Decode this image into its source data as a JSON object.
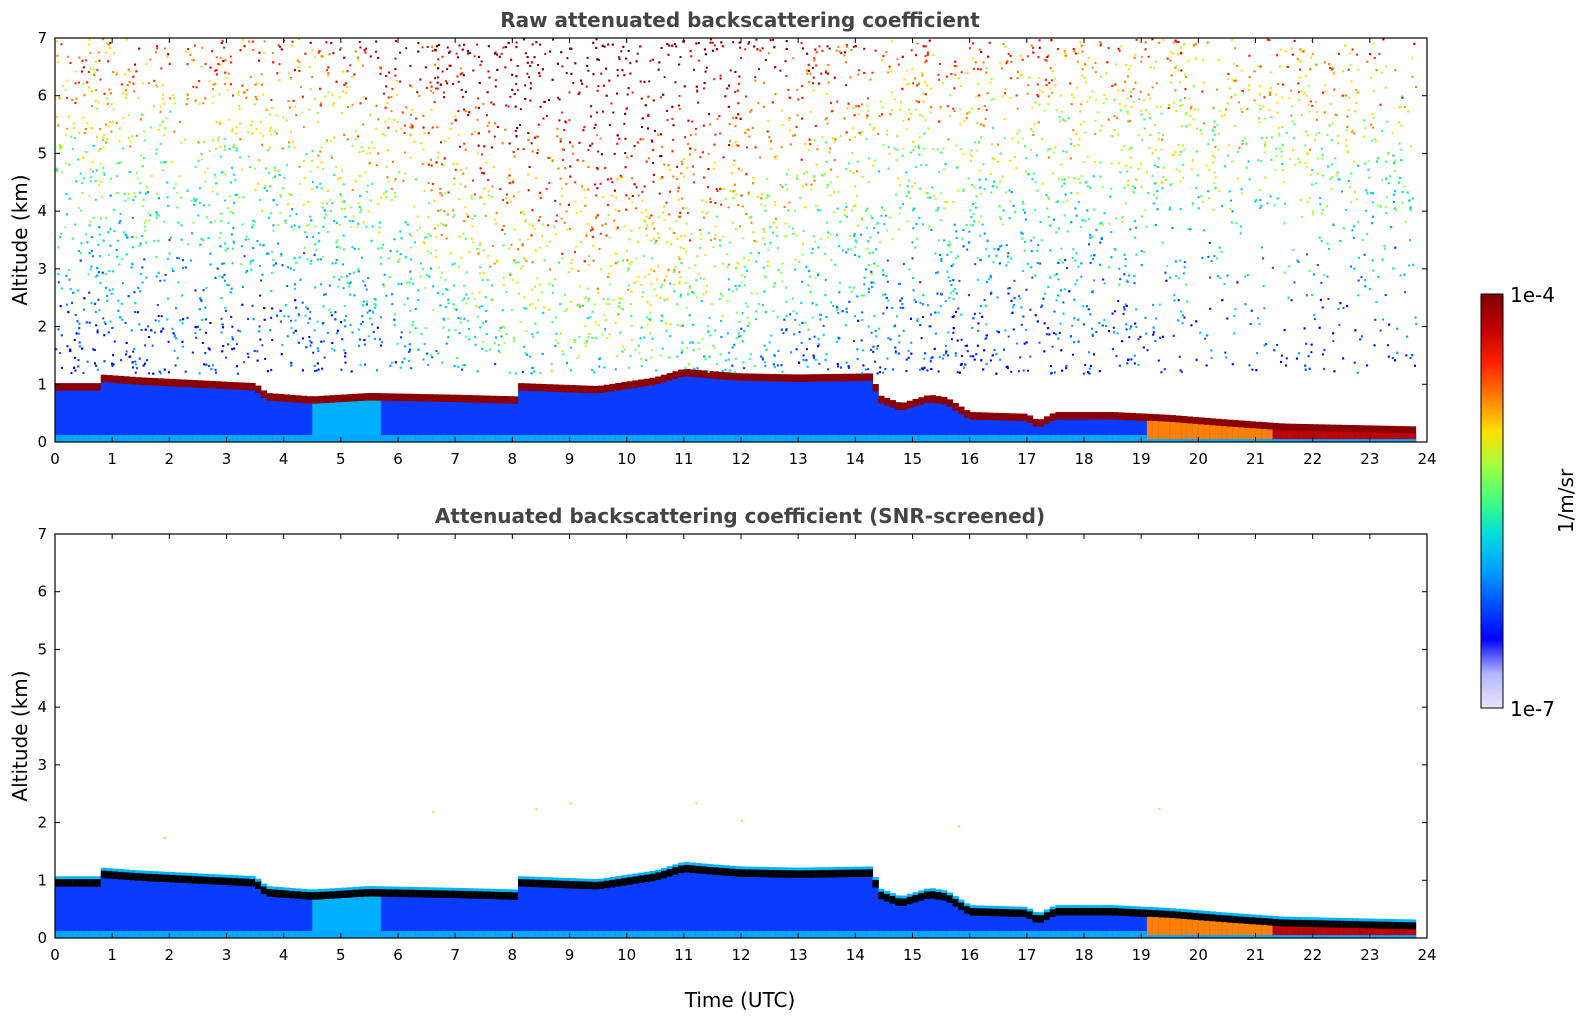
{
  "chart_data": [
    {
      "type": "heatmap",
      "title": "Raw attenuated backscattering coefficient",
      "xlabel": "",
      "ylabel": "Altitude (km)",
      "xlim": [
        0,
        24
      ],
      "ylim": [
        0,
        7
      ],
      "xticks": [
        "0",
        "1",
        "2",
        "3",
        "4",
        "5",
        "6",
        "7",
        "8",
        "9",
        "10",
        "11",
        "12",
        "13",
        "14",
        "15",
        "16",
        "17",
        "18",
        "19",
        "20",
        "21",
        "22",
        "23",
        "24"
      ],
      "yticks": [
        "0",
        "1",
        "2",
        "3",
        "4",
        "5",
        "6",
        "7"
      ],
      "screened": false,
      "layer_height_km": [
        [
          0,
          0.95
        ],
        [
          0.75,
          0.95
        ],
        [
          0.8,
          1.1
        ],
        [
          1.5,
          1.05
        ],
        [
          2.5,
          1.0
        ],
        [
          3.5,
          0.95
        ],
        [
          3.7,
          0.78
        ],
        [
          4.5,
          0.72
        ],
        [
          5.5,
          0.78
        ],
        [
          7.0,
          0.75
        ],
        [
          8.1,
          0.72
        ],
        [
          8.15,
          0.95
        ],
        [
          9.5,
          0.9
        ],
        [
          10.5,
          1.05
        ],
        [
          11.0,
          1.2
        ],
        [
          11.6,
          1.15
        ],
        [
          12.0,
          1.12
        ],
        [
          13.0,
          1.1
        ],
        [
          14.3,
          1.12
        ],
        [
          14.4,
          0.75
        ],
        [
          14.8,
          0.6
        ],
        [
          15.3,
          0.75
        ],
        [
          15.6,
          0.7
        ],
        [
          16.0,
          0.45
        ],
        [
          17.0,
          0.42
        ],
        [
          17.2,
          0.3
        ],
        [
          17.5,
          0.45
        ],
        [
          18.5,
          0.45
        ],
        [
          19.5,
          0.4
        ],
        [
          20.5,
          0.32
        ],
        [
          21.5,
          0.25
        ],
        [
          23.8,
          0.2
        ]
      ]
    },
    {
      "type": "heatmap",
      "title": "Attenuated backscattering coefficient (SNR-screened)",
      "xlabel": "Time (UTC)",
      "ylabel": "Altitude (km)",
      "xlim": [
        0,
        24
      ],
      "ylim": [
        0,
        7
      ],
      "xticks": [
        "0",
        "1",
        "2",
        "3",
        "4",
        "5",
        "6",
        "7",
        "8",
        "9",
        "10",
        "11",
        "12",
        "13",
        "14",
        "15",
        "16",
        "17",
        "18",
        "19",
        "20",
        "21",
        "22",
        "23",
        "24"
      ],
      "yticks": [
        "0",
        "1",
        "2",
        "3",
        "4",
        "5",
        "6",
        "7"
      ],
      "screened": true,
      "layer_height_km": [
        [
          0,
          0.95
        ],
        [
          0.75,
          0.95
        ],
        [
          0.8,
          1.1
        ],
        [
          1.5,
          1.05
        ],
        [
          2.5,
          1.0
        ],
        [
          3.5,
          0.95
        ],
        [
          3.7,
          0.78
        ],
        [
          4.5,
          0.72
        ],
        [
          5.5,
          0.78
        ],
        [
          7.0,
          0.75
        ],
        [
          8.1,
          0.72
        ],
        [
          8.15,
          0.95
        ],
        [
          9.5,
          0.9
        ],
        [
          10.5,
          1.05
        ],
        [
          11.0,
          1.2
        ],
        [
          11.6,
          1.15
        ],
        [
          12.0,
          1.12
        ],
        [
          13.0,
          1.1
        ],
        [
          14.3,
          1.12
        ],
        [
          14.4,
          0.75
        ],
        [
          14.8,
          0.6
        ],
        [
          15.3,
          0.75
        ],
        [
          15.6,
          0.7
        ],
        [
          16.0,
          0.45
        ],
        [
          17.0,
          0.42
        ],
        [
          17.2,
          0.3
        ],
        [
          17.5,
          0.45
        ],
        [
          18.5,
          0.45
        ],
        [
          19.5,
          0.4
        ],
        [
          20.5,
          0.32
        ],
        [
          21.5,
          0.25
        ],
        [
          23.8,
          0.2
        ]
      ]
    }
  ],
  "colorbar": {
    "min_label": "1e-7",
    "max_label": "1e-4",
    "label": "1/m/sr",
    "scale": "log",
    "colors": [
      "#e6e6ff",
      "#b4b4ff",
      "#0000ff",
      "#0050ff",
      "#00a0ff",
      "#00dcdc",
      "#40ff80",
      "#a0ff40",
      "#ffe000",
      "#ff8000",
      "#ff2000",
      "#c00000",
      "#800000"
    ]
  }
}
